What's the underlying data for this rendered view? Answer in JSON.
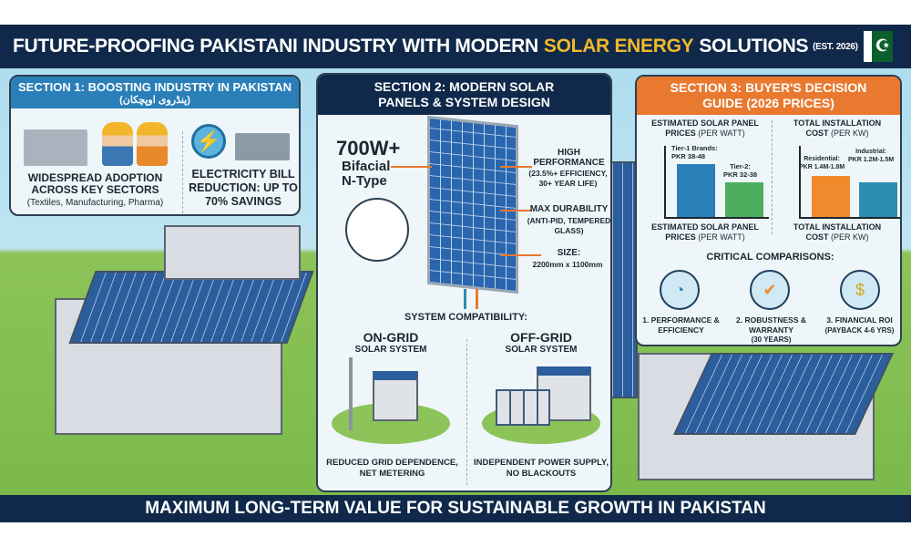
{
  "title": {
    "prefix": "FUTURE-PROOFING PAKISTANI INDUSTRY WITH MODERN",
    "highlight": "SOLAR ENERGY",
    "suffix": "SOLUTIONS",
    "est": "(EST. 2026)",
    "flag_symbol": "☪"
  },
  "section1": {
    "header": "SECTION 1: BOOSTING INDUSTRY IN PAKISTAN",
    "subheader": "(پنڈروی اوپچکان)",
    "item1_title": "WIDESPREAD ADOPTION ACROSS KEY SECTORS",
    "item1_sub": "(Textiles, Manufacturing, Pharma)",
    "item2_title": "ELECTRICITY BILL REDUCTION: UP TO 70% SAVINGS"
  },
  "section2": {
    "header": "SECTION 2: MODERN SOLAR PANELS & SYSTEM DESIGN",
    "power": "700W+",
    "type1": "Bifacial",
    "type2": "N-Type",
    "perf_title": "HIGH PERFORMANCE",
    "perf_sub": "(23.5%+ EFFICIENCY, 30+ YEAR LIFE)",
    "dur_title": "MAX DURABILITY",
    "dur_sub": "(ANTI-PID, TEMPERED GLASS)",
    "size_title": "SIZE:",
    "size_value": "2200mm x 1100mm",
    "compat": "SYSTEM COMPATIBILITY:",
    "ongrid_title": "ON-GRID",
    "ongrid_sub": "SOLAR SYSTEM",
    "ongrid_desc": "REDUCED GRID DEPENDENCE, NET METERING",
    "offgrid_title": "OFF-GRID",
    "offgrid_sub": "SOLAR SYSTEM",
    "offgrid_desc": "INDEPENDENT POWER SUPPLY, NO BLACKOUTS"
  },
  "section3": {
    "header": "SECTION 3: BUYER'S DECISION GUIDE (2026 PRICES)",
    "chart1_title": "ESTIMATED SOLAR PANEL",
    "chart1_unit_label": "PRICES",
    "chart1_unit": "(PER WATT)",
    "chart1_bars": [
      {
        "label": "Tier-1 Brands:",
        "value": "PKR 38-48",
        "color": "#2a7fb8"
      },
      {
        "label": "Tier-2:",
        "value": "PKR 32-38",
        "color": "#4cae5e"
      }
    ],
    "chart2_title": "TOTAL INSTALLATION",
    "chart2_unit_label": "COST",
    "chart2_unit": "(PER KW)",
    "chart2_bars": [
      {
        "label": "Residential:",
        "value": "PKR 1.4M-1.8M",
        "color": "#f08a2c"
      },
      {
        "label": "Industrial:",
        "value": "PKR 1.2M-1.5M",
        "color": "#2a8fb0"
      }
    ],
    "comparisons_title": "CRITICAL COMPARISONS:",
    "comparisons": [
      {
        "label": "1. PERFORMANCE & EFFICIENCY",
        "icon": "gauge-icon"
      },
      {
        "label": "2. ROBUSTNESS & WARRANTY",
        "sub": "(30 YEARS)",
        "icon": "shield-check-icon"
      },
      {
        "label": "3. FINANCIAL ROI",
        "sub": "(PAYBACK 4-6 YRS)",
        "icon": "money-hand-icon"
      }
    ]
  },
  "footer": "MAXIMUM LONG-TERM VALUE FOR SUSTAINABLE GROWTH IN PAKISTAN",
  "colors": {
    "navy": "#10294a",
    "gold": "#f0b92c",
    "orange": "#e8792f",
    "blue": "#2a7fb8"
  }
}
